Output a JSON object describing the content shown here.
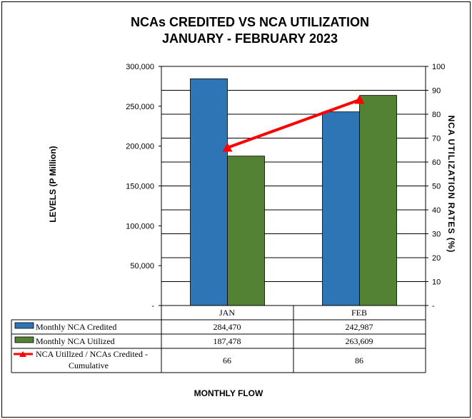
{
  "chart_data": {
    "type": "bar",
    "title_line1": "NCAs CREDITED VS NCA UTILIZATION",
    "title_line2": "JANUARY - FEBRUARY 2023",
    "ylabel": "LEVELS (P Million)",
    "y2label": "NCA UTILIZATION RATES (%)",
    "xlabel": "MONTHLY FLOW",
    "categories": [
      "JAN",
      "FEB"
    ],
    "ylim": [
      0,
      300000
    ],
    "y2lim": [
      0,
      100
    ],
    "y_ticks": [
      "-",
      "50,000",
      "100,000",
      "150,000",
      "200,000",
      "250,000",
      "300,000"
    ],
    "y2_ticks": [
      "-",
      "10",
      "20",
      "30",
      "40",
      "50",
      "60",
      "70",
      "80",
      "90",
      "100"
    ],
    "grid": true,
    "series": [
      {
        "name": "Monthly NCA Credited",
        "kind": "bar",
        "color": "#2E75B6",
        "values": [
          284470,
          242987
        ],
        "labels": [
          "284,470",
          "242,987"
        ]
      },
      {
        "name": "Monthly NCA Utilized",
        "kind": "bar",
        "color": "#548235",
        "values": [
          187478,
          263609
        ],
        "labels": [
          "187,478",
          "263,609"
        ]
      },
      {
        "name_line1": "NCA Utillzed / NCAs Credited -",
        "name_line2": "Cumulative",
        "kind": "line",
        "axis": "right",
        "color": "#FF0000",
        "values": [
          66,
          86
        ],
        "labels": [
          "66",
          "86"
        ]
      }
    ]
  }
}
